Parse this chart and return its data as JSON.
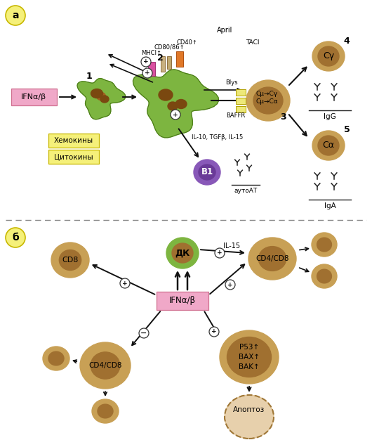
{
  "bg_color": "#ffffff",
  "panel_a_label": "а",
  "panel_b_label": "б",
  "ifn_text": "IFNα/β",
  "chemokine_text": "Хемокины",
  "cytokine_text": "Цитокины",
  "cell_outer": "#c8a055",
  "cell_inner": "#a07030",
  "green_outer": "#7db540",
  "green_inner": "#4a7a18",
  "purple_outer": "#8858b8",
  "purple_inner": "#6a3a98",
  "b_cell_text": "B1",
  "autAT_text": "аутоАТ",
  "dk_text": "ДК",
  "cd8_text": "CD8",
  "cd4cd8_text": "CD4/CD8",
  "p53_text": "P53↑\nBAX↑\nBAK↑",
  "apoptosis_text": "Апоптоз",
  "il15_text": "IL-15",
  "il10_text": "IL-10, TGFβ, IL-15",
  "baffr_text": "BAFFR",
  "blys_text": "Blys",
  "taci_text": "TACI",
  "april_text": "April",
  "cd80_text": "CD80/86↑",
  "cd40_text": "CD40↑",
  "mhci_text": "MHCI↑",
  "c_gamma_text": "Cγ",
  "c_alpha_text": "Cα",
  "igg_text": "IgG",
  "iga_text": "IgA",
  "switch_text": "Cμ→Cγ\nCμ→Cα",
  "switch_num": "3",
  "num4": "4",
  "num5": "5",
  "num1": "1",
  "num2": "2",
  "yellow_bg": "#f5f07a",
  "yellow_border": "#c8b800",
  "pink_bg": "#f0a8c8",
  "pink_border": "#d07090",
  "label_bg": "#f5f07a"
}
